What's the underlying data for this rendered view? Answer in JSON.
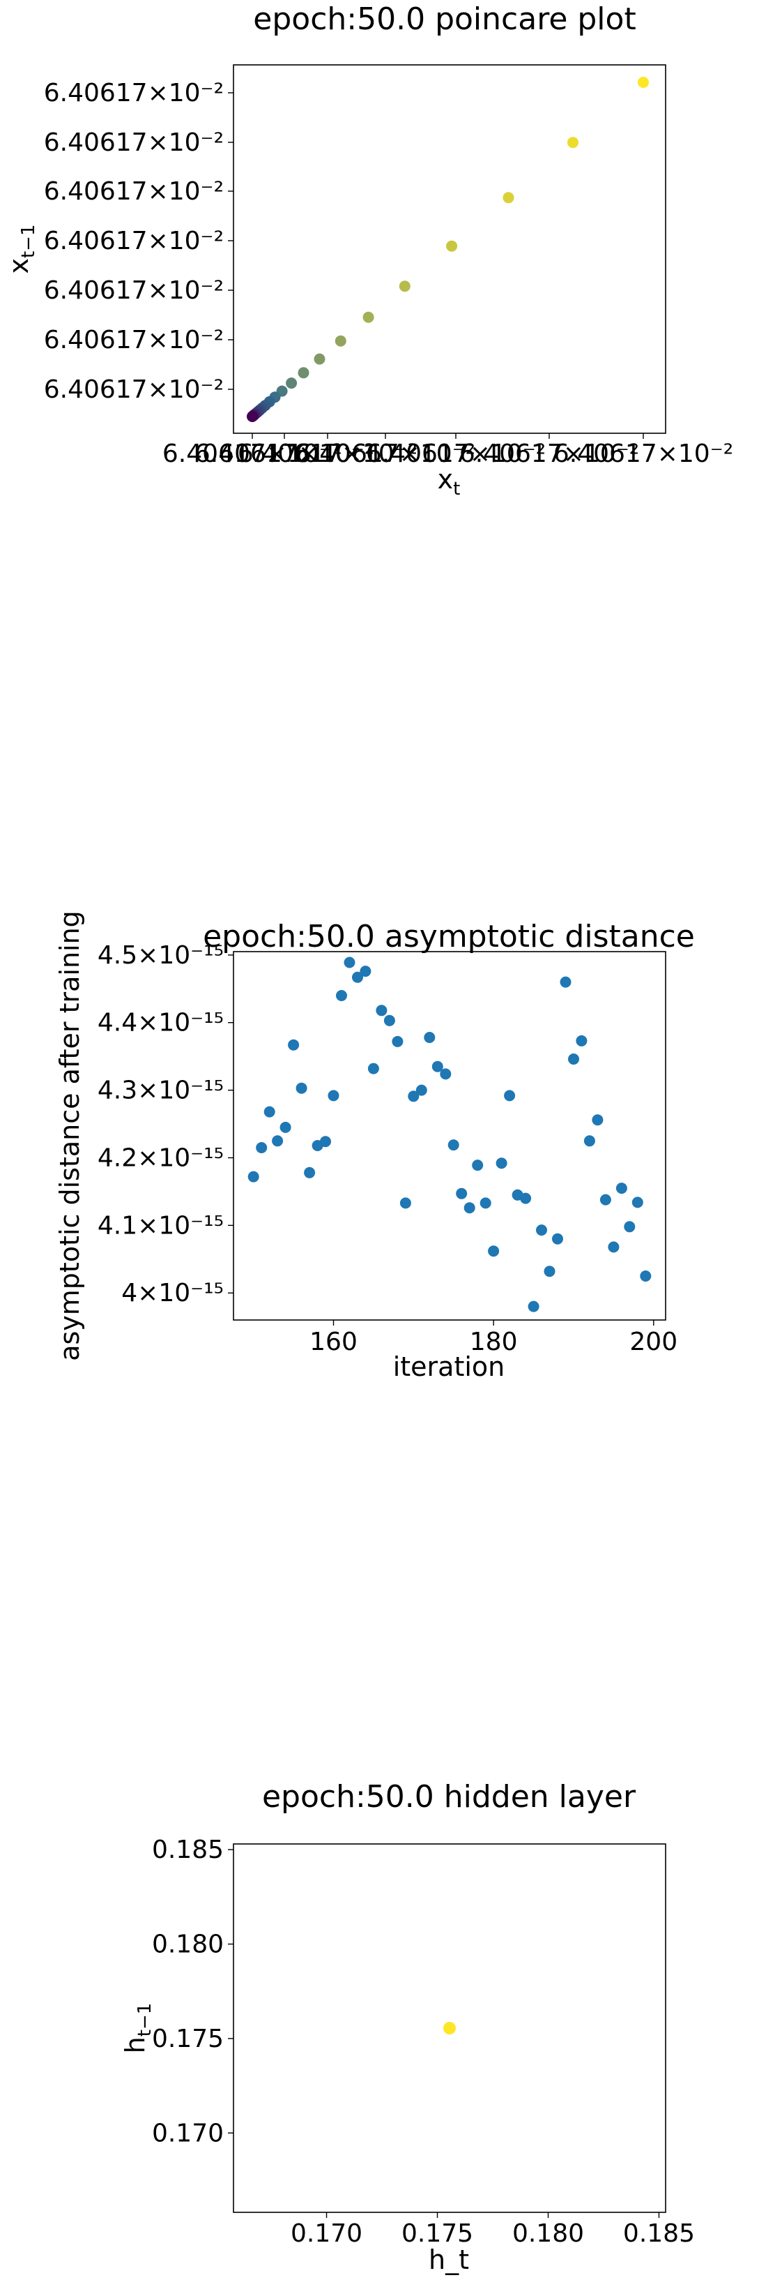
{
  "colors": {
    "viridis_start": "#440154",
    "viridis_mid": "#31688e",
    "viridis_end": "#fde725",
    "series": "#1f77b4"
  },
  "chart_data": [
    {
      "type": "scatter",
      "title": "epoch:50.0 poincare plot",
      "xlabel": "x_t",
      "ylabel": "x_t−1",
      "grid": false,
      "x_tick_labels": [
        "6.40617×10⁻²",
        "6.40617×10⁻²",
        "6.40617×10⁻²",
        "6.40617×10⁻²",
        "6.40617×10⁻²",
        "6.40617×10⁻²",
        "6.40617×10⁻²"
      ],
      "y_tick_labels": [
        "6.40617×10⁻²",
        "6.40617×10⁻²",
        "6.40617×10⁻²",
        "6.40617×10⁻²",
        "6.40617×10⁻²",
        "6.40617×10⁻²",
        "6.40617×10⁻²"
      ],
      "xlim": [
        0,
        1
      ],
      "ylim": [
        0,
        1
      ],
      "color_scale": "viridis",
      "x": [
        1.0,
        0.82,
        0.655,
        0.51,
        0.39,
        0.297,
        0.226,
        0.172,
        0.131,
        0.1,
        0.076,
        0.058,
        0.044,
        0.033,
        0.025,
        0.019,
        0.014,
        0.01,
        0.0068,
        0.0045,
        0.0028,
        0.0015,
        0.0006,
        0.0
      ],
      "y": [
        1.0,
        0.82,
        0.655,
        0.51,
        0.39,
        0.297,
        0.226,
        0.172,
        0.131,
        0.1,
        0.076,
        0.058,
        0.044,
        0.033,
        0.025,
        0.019,
        0.014,
        0.01,
        0.0068,
        0.0045,
        0.0028,
        0.0015,
        0.0006,
        0.0
      ]
    },
    {
      "type": "scatter",
      "title": "epoch:50.0 asymptotic distance",
      "xlabel": "iteration",
      "ylabel": "asymptotic distance after training",
      "grid": false,
      "xlim": [
        147.5,
        201.5
      ],
      "ylim": [
        3.96e-15,
        4.505e-15
      ],
      "x_ticks": [
        160,
        180,
        200
      ],
      "x_tick_labels": [
        "160",
        "180",
        "200"
      ],
      "y_ticks": [
        4e-15,
        4.1e-15,
        4.2e-15,
        4.3e-15,
        4.4e-15,
        4.5e-15
      ],
      "y_tick_labels": [
        "4×10⁻¹⁵",
        "4.1×10⁻¹⁵",
        "4.2×10⁻¹⁵",
        "4.3×10⁻¹⁵",
        "4.4×10⁻¹⁵",
        "4.5×10⁻¹⁵"
      ],
      "x": [
        150,
        151,
        152,
        153,
        154,
        155,
        156,
        157,
        158,
        159,
        160,
        161,
        162,
        163,
        164,
        165,
        166,
        167,
        168,
        169,
        170,
        171,
        172,
        173,
        174,
        175,
        176,
        177,
        178,
        179,
        180,
        181,
        182,
        183,
        184,
        185,
        186,
        187,
        188,
        189,
        190,
        191,
        192,
        193,
        194,
        195,
        196,
        197,
        198,
        199
      ],
      "y": [
        4.172e-15,
        4.215e-15,
        4.268e-15,
        4.225e-15,
        4.245e-15,
        4.367e-15,
        4.303e-15,
        4.178e-15,
        4.218e-15,
        4.224e-15,
        4.292e-15,
        4.44e-15,
        4.489e-15,
        4.467e-15,
        4.476e-15,
        4.332e-15,
        4.418e-15,
        4.403e-15,
        4.372e-15,
        4.133e-15,
        4.291e-15,
        4.3e-15,
        4.378e-15,
        4.335e-15,
        4.324e-15,
        4.219e-15,
        4.147e-15,
        4.126e-15,
        4.189e-15,
        4.133e-15,
        4.062e-15,
        4.192e-15,
        4.292e-15,
        4.145e-15,
        4.14e-15,
        3.98e-15,
        4.093e-15,
        4.032e-15,
        4.08e-15,
        4.46e-15,
        4.346e-15,
        4.373e-15,
        4.225e-15,
        4.256e-15,
        4.138e-15,
        4.068e-15,
        4.155e-15,
        4.098e-15,
        4.134e-15,
        4.025e-15
      ]
    },
    {
      "type": "scatter",
      "title": "epoch:50.0 hidden layer",
      "xlabel": "h_t",
      "ylabel": "h_t−1",
      "grid": false,
      "xlim": [
        0.1658,
        0.1853
      ],
      "ylim": [
        0.1658,
        0.1853
      ],
      "x_ticks": [
        0.17,
        0.175,
        0.18,
        0.185
      ],
      "x_tick_labels": [
        "0.170",
        "0.175",
        "0.180",
        "0.185"
      ],
      "y_ticks": [
        0.17,
        0.175,
        0.18,
        0.185
      ],
      "y_tick_labels": [
        "0.170",
        "0.175",
        "0.180",
        "0.185"
      ],
      "x": [
        0.17555
      ],
      "y": [
        0.17555
      ]
    }
  ]
}
